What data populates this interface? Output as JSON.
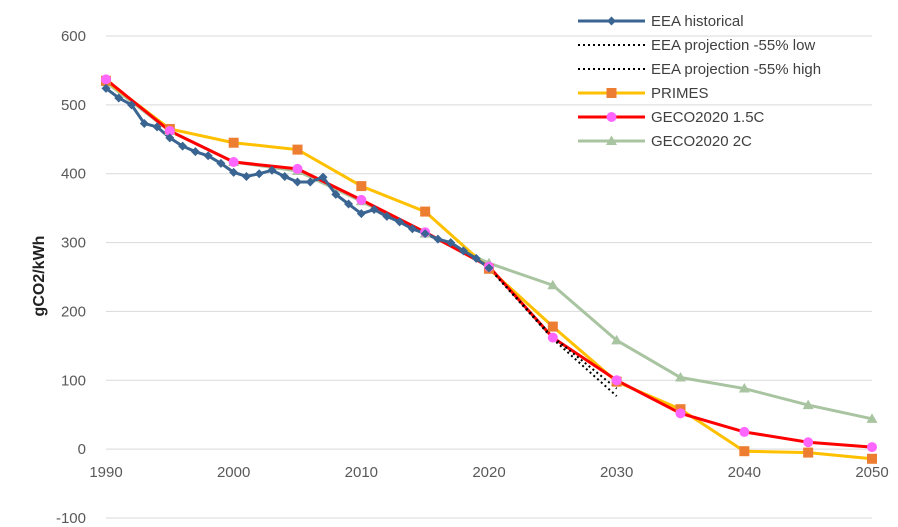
{
  "chart_data": {
    "type": "line",
    "title": "",
    "xlabel": "",
    "ylabel": "gCO2/kWh",
    "xlim": [
      1990,
      2050
    ],
    "ylim": [
      -100,
      600
    ],
    "xticks": [
      1990,
      2000,
      2010,
      2020,
      2030,
      2040,
      2050
    ],
    "yticks": [
      -100,
      0,
      100,
      200,
      300,
      400,
      500,
      600
    ],
    "grid": "horizontal",
    "legend_position": "top-right",
    "series": [
      {
        "name": "EEA historical",
        "color": "#3a6491",
        "style": "solid",
        "marker": "diamond",
        "x": [
          1990,
          1991,
          1992,
          1993,
          1994,
          1995,
          1996,
          1997,
          1998,
          1999,
          2000,
          2001,
          2002,
          2003,
          2004,
          2005,
          2006,
          2007,
          2008,
          2009,
          2010,
          2011,
          2012,
          2013,
          2014,
          2015,
          2016,
          2017,
          2018,
          2019,
          2020
        ],
        "y": [
          524,
          510,
          500,
          473,
          468,
          452,
          440,
          432,
          426,
          415,
          402,
          396,
          400,
          405,
          396,
          388,
          388,
          395,
          370,
          356,
          342,
          348,
          338,
          330,
          320,
          313,
          305,
          300,
          288,
          277,
          263
        ]
      },
      {
        "name": "EEA projection -55% low",
        "color": "#000000",
        "style": "dotted",
        "marker": "none",
        "x": [
          2020,
          2025,
          2030
        ],
        "y": [
          263,
          160,
          77
        ]
      },
      {
        "name": "EEA projection -55% high",
        "color": "#000000",
        "style": "dotted",
        "marker": "none",
        "x": [
          2020,
          2025,
          2030
        ],
        "y": [
          263,
          163,
          88
        ]
      },
      {
        "name": "PRIMES",
        "color": "#ffc000",
        "style": "solid",
        "marker": "square",
        "marker_color": "#ed7d31",
        "x": [
          1990,
          1995,
          2000,
          2005,
          2010,
          2015,
          2020,
          2025,
          2030,
          2035,
          2040,
          2045,
          2050
        ],
        "y": [
          535,
          465,
          445,
          435,
          382,
          345,
          262,
          178,
          98,
          58,
          -3,
          -5,
          -14
        ]
      },
      {
        "name": "GECO2020 1.5C",
        "color": "#ff0000",
        "style": "solid",
        "marker": "circle",
        "marker_color": "#ff66ff",
        "x": [
          1990,
          1995,
          2000,
          2005,
          2010,
          2015,
          2020,
          2025,
          2030,
          2035,
          2040,
          2045,
          2050
        ],
        "y": [
          537,
          462,
          417,
          407,
          362,
          315,
          265,
          162,
          100,
          52,
          25,
          10,
          3
        ]
      },
      {
        "name": "GECO2020 2C",
        "color": "#a9c4a0",
        "style": "solid",
        "marker": "triangle",
        "x": [
          1990,
          1995,
          2000,
          2005,
          2010,
          2015,
          2020,
          2025,
          2030,
          2035,
          2040,
          2045,
          2050
        ],
        "y": [
          533,
          462,
          417,
          404,
          360,
          313,
          270,
          238,
          158,
          104,
          88,
          64,
          44
        ]
      }
    ]
  }
}
